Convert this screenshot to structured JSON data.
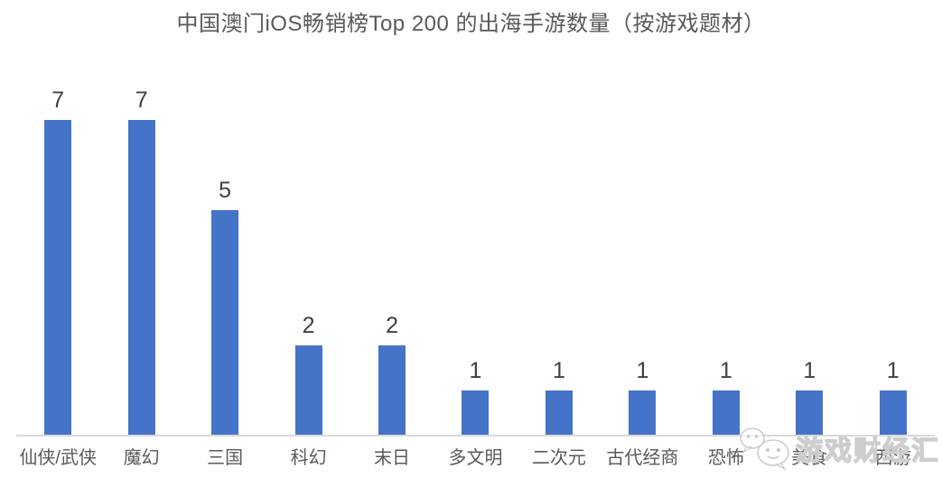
{
  "chart_data": {
    "type": "bar",
    "title": "中国澳门iOS畅销榜Top 200 的出海手游数量（按游戏题材）",
    "categories": [
      "仙侠/武侠",
      "魔幻",
      "三国",
      "科幻",
      "末日",
      "多文明",
      "二次元",
      "古代经商",
      "恐怖",
      "美食",
      "西游"
    ],
    "values": [
      7,
      7,
      5,
      2,
      2,
      1,
      1,
      1,
      1,
      1,
      1
    ],
    "xlabel": "",
    "ylabel": "",
    "ylim": [
      0,
      7
    ],
    "grid": false,
    "legend": false,
    "y_axis_visible": false,
    "data_labels_visible": true,
    "bar_color": "#4573C8",
    "axis_line_color": "#D9D9D9",
    "label_color": "#595959",
    "value_label_color": "#404040"
  },
  "watermark": {
    "text": "游戏财经汇",
    "icon": "wechat-chat-bubbles-icon"
  }
}
